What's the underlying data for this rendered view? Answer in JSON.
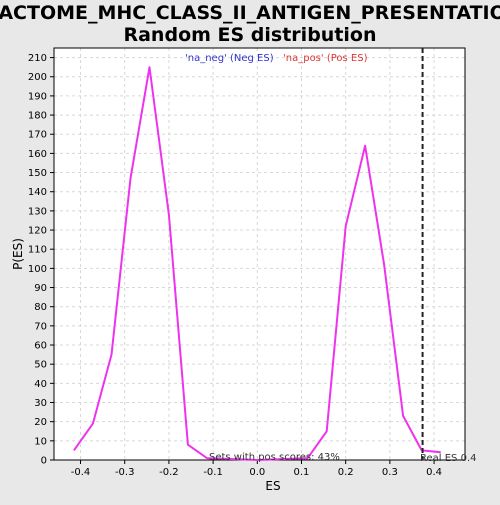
{
  "chart_data": {
    "type": "line",
    "title_lines": [
      "REACTOME_MHC_CLASS_II_ANTIGEN_PRESENTATION:",
      "Random ES distribution"
    ],
    "xlabel": "ES",
    "ylabel": "P(ES)",
    "xlim": [
      -0.46,
      0.47
    ],
    "ylim": [
      0,
      215
    ],
    "xticks": [
      -0.4,
      -0.3,
      -0.2,
      -0.1,
      0.0,
      0.1,
      0.2,
      0.3,
      0.4
    ],
    "xtick_labels": [
      "-0.4",
      "-0.3",
      "-0.2",
      "-0.1",
      "0.0",
      "0.1",
      "0.2",
      "0.3",
      "0.4"
    ],
    "yticks": [
      0,
      10,
      20,
      30,
      40,
      50,
      60,
      70,
      80,
      90,
      100,
      110,
      120,
      130,
      140,
      150,
      160,
      170,
      180,
      190,
      200,
      210
    ],
    "grid": true,
    "legend": [
      {
        "label": "'na_neg' (Neg ES)",
        "color": "#3333cc"
      },
      {
        "label": "'na_pos' (Pos ES)",
        "color": "#dd3333"
      }
    ],
    "series": [
      {
        "color": "#ee33ee",
        "x": [
          -0.415,
          -0.372,
          -0.33,
          -0.287,
          -0.244,
          -0.2,
          -0.157,
          -0.114,
          0.0,
          0.114,
          0.157,
          0.2,
          0.244,
          0.287,
          0.33,
          0.372,
          0.415
        ],
        "y": [
          5,
          19,
          55,
          147,
          205,
          128,
          8,
          1,
          0,
          1,
          15,
          122,
          164,
          102,
          23,
          5,
          4
        ]
      }
    ],
    "real_es": 0.374,
    "annotations": {
      "sets_with_pos": "Sets with pos scores: 43%",
      "real_es_label": "Real ES 0.4"
    }
  }
}
